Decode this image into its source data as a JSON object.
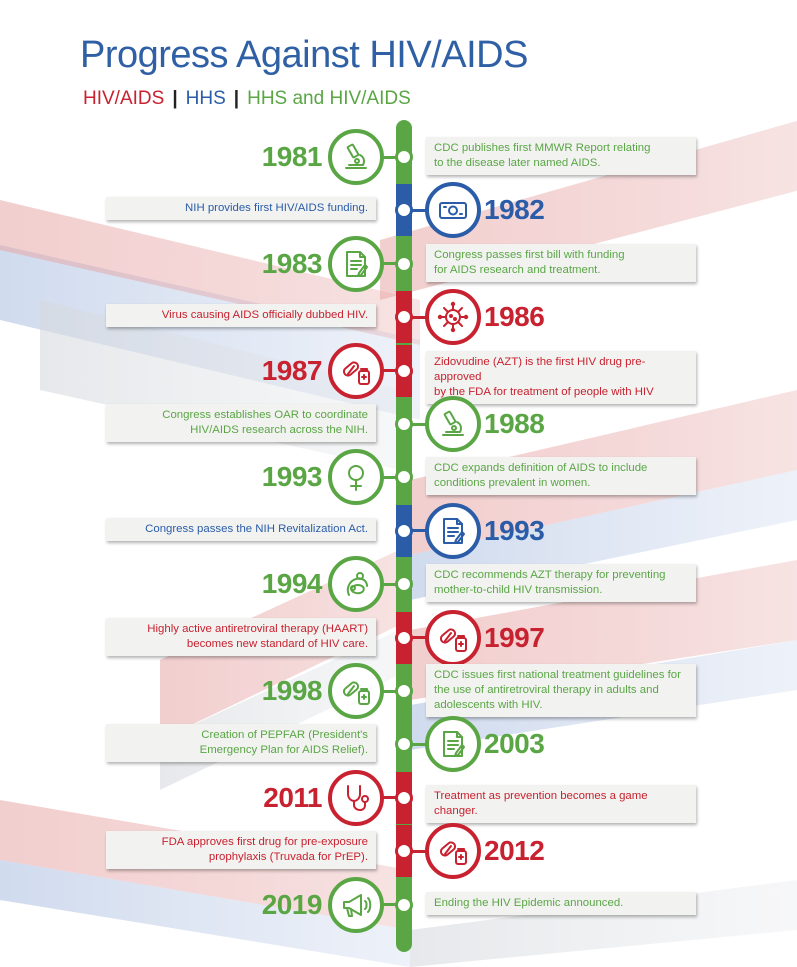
{
  "title": "Progress Against HIV/AIDS",
  "legend": {
    "items": [
      {
        "label": "HIV/AIDS",
        "color": "#c8212f"
      },
      {
        "label": "HHS",
        "color": "#2a5ca8"
      },
      {
        "label": "HHS and HIV/AIDS",
        "color": "#5aa645"
      }
    ],
    "separator": "|"
  },
  "colors": {
    "green": "#5aa645",
    "blue": "#2a5ca8",
    "red": "#c8212f"
  },
  "events": [
    {
      "year": "1981",
      "category": "green",
      "side": "left",
      "icon": "microscope-icon",
      "text": [
        "CDC publishes first MMWR Report relating",
        "to the disease later named AIDS."
      ]
    },
    {
      "year": "1982",
      "category": "blue",
      "side": "right",
      "icon": "money-icon",
      "text": [
        "NIH provides first HIV/AIDS funding."
      ]
    },
    {
      "year": "1983",
      "category": "green",
      "side": "left",
      "icon": "document-icon",
      "text": [
        "Congress passes first bill with funding",
        "for AIDS research and treatment."
      ]
    },
    {
      "year": "1986",
      "category": "red",
      "side": "right",
      "icon": "virus-icon",
      "text": [
        "Virus causing AIDS officially dubbed HIV."
      ]
    },
    {
      "year": "1987",
      "category": "red",
      "side": "left",
      "icon": "pills-icon",
      "text": [
        "Zidovudine (AZT) is the first HIV drug pre-approved",
        "by the FDA for treatment of people with HIV"
      ]
    },
    {
      "year": "1988",
      "category": "green",
      "side": "right",
      "icon": "microscope-icon",
      "text": [
        "Congress establishes OAR to coordinate",
        "HIV/AIDS research across the NIH."
      ]
    },
    {
      "year": "1993",
      "category": "green",
      "side": "left",
      "icon": "female-icon",
      "text": [
        "CDC expands definition of AIDS to include",
        "conditions prevalent in women."
      ]
    },
    {
      "year": "1993",
      "category": "blue",
      "side": "right",
      "icon": "document-icon",
      "text": [
        "Congress passes the NIH Revitalization Act."
      ]
    },
    {
      "year": "1994",
      "category": "green",
      "side": "left",
      "icon": "mother-child-icon",
      "text": [
        "CDC recommends AZT therapy for preventing",
        "mother-to-child HIV transmission."
      ]
    },
    {
      "year": "1997",
      "category": "red",
      "side": "right",
      "icon": "pills-icon",
      "text": [
        "Highly active antiretroviral therapy (HAART)",
        "becomes new standard of HIV care."
      ]
    },
    {
      "year": "1998",
      "category": "green",
      "side": "left",
      "icon": "pills-icon",
      "text": [
        "CDC issues first national treatment guidelines for",
        "the use of antiretroviral therapy in adults and",
        "adolescents with HIV."
      ]
    },
    {
      "year": "2003",
      "category": "green",
      "side": "right",
      "icon": "document-icon",
      "text": [
        "Creation of PEPFAR (President's",
        "Emergency Plan for AIDS Relief)."
      ]
    },
    {
      "year": "2011",
      "category": "red",
      "side": "left",
      "icon": "stethoscope-icon",
      "text": [
        "Treatment as prevention becomes a game changer."
      ]
    },
    {
      "year": "2012",
      "category": "red",
      "side": "right",
      "icon": "pills-icon",
      "text": [
        "FDA approves first drug for pre-exposure",
        "prophylaxis (Truvada for PrEP)."
      ]
    },
    {
      "year": "2019",
      "category": "green",
      "side": "left",
      "icon": "megaphone-icon",
      "text": [
        "Ending the HIV Epidemic announced."
      ]
    }
  ]
}
